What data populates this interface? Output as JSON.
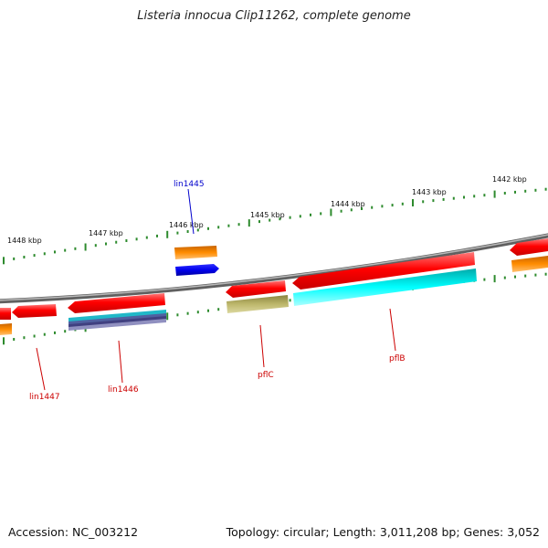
{
  "title": "Listeria innocua Clip11262, complete genome",
  "footer": {
    "accession": "Accession: NC_003212",
    "summary": "Topology: circular; Length: 3,011,208 bp; Genes: 3,052"
  },
  "scale_labels": [
    "1448 kbp",
    "1447 kbp",
    "1446 kbp",
    "1445 kbp",
    "1444 kbp",
    "1443 kbp",
    "1442 kbp"
  ],
  "gene_labels": [
    {
      "name": "lin1445",
      "color": "#0000cc"
    },
    {
      "name": "lin1447",
      "color": "#cc0000"
    },
    {
      "name": "lin1446",
      "color": "#cc0000"
    },
    {
      "name": "pflC",
      "color": "#cc0000"
    },
    {
      "name": "pflB",
      "color": "#cc0000"
    }
  ],
  "colors": {
    "cds": "#ff0000",
    "cds_light": "#ffb0b0",
    "orange": "#ff8c00",
    "blue": "#0000ee",
    "cyan": "#00ffff",
    "olive": "#bdb76b",
    "scale_tick": "#2e8b2e",
    "backbone": "#808080"
  }
}
